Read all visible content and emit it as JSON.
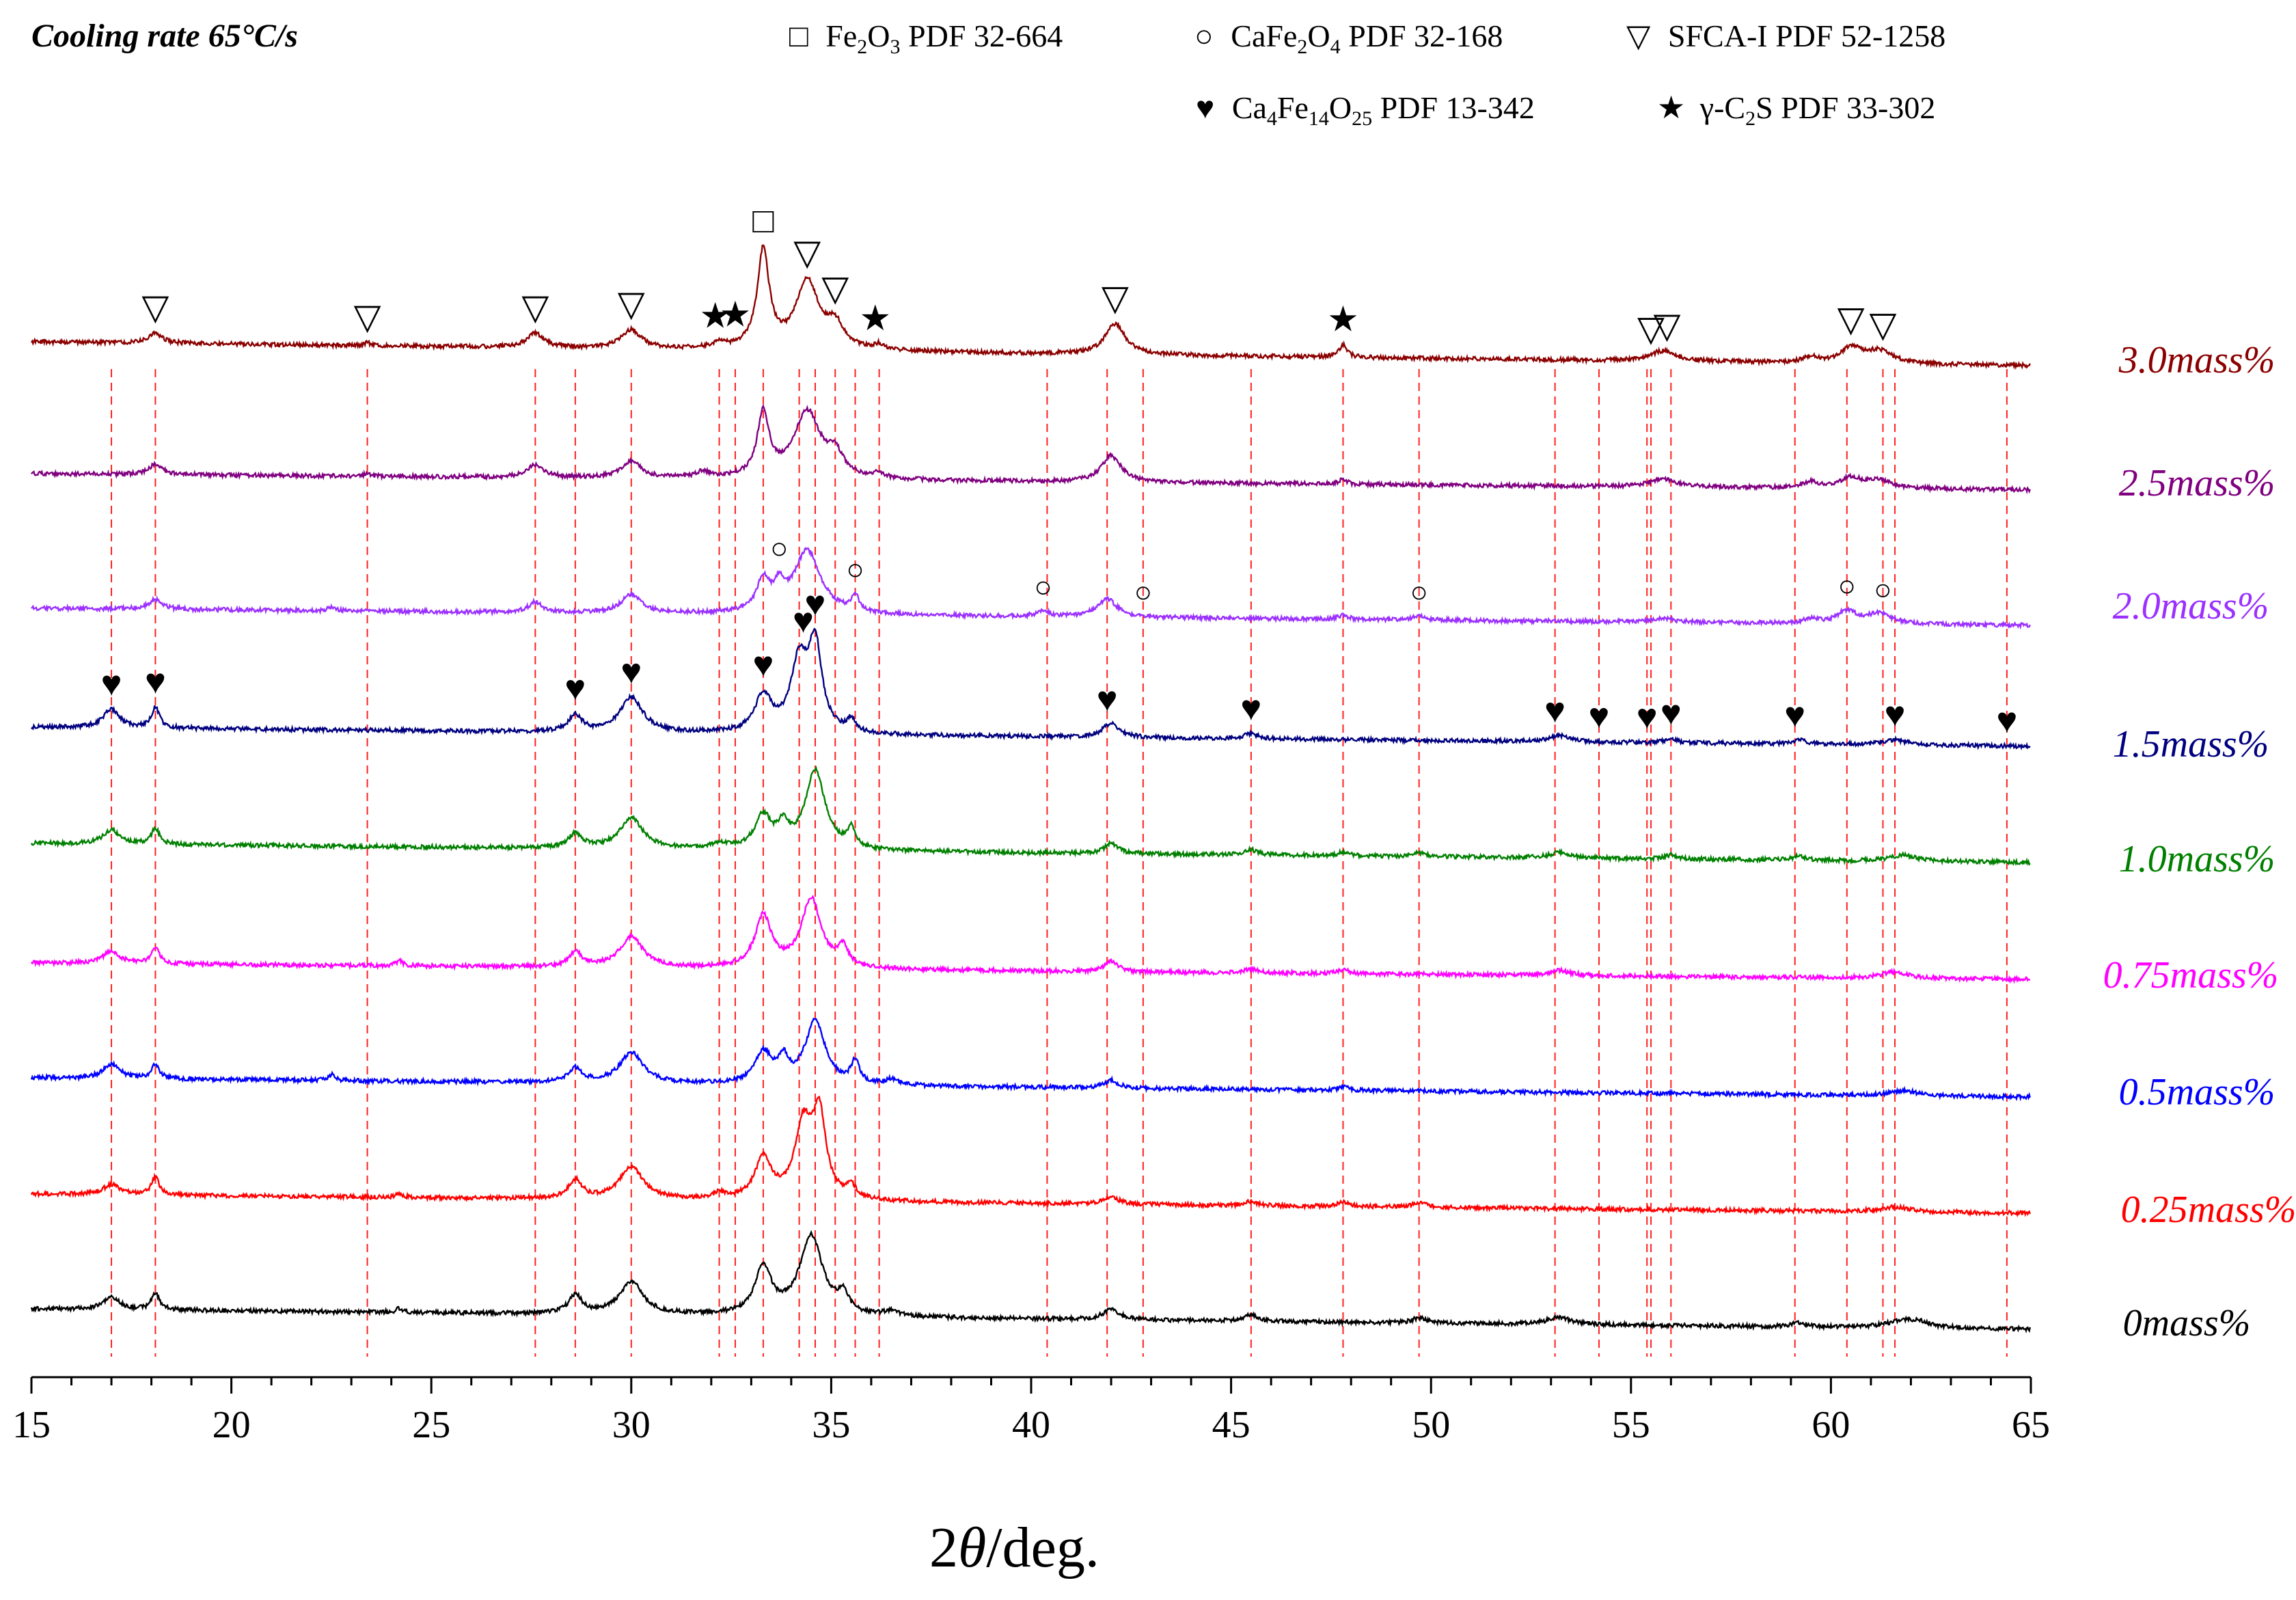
{
  "chart_data": {
    "type": "line",
    "title": "Cooling rate 65°C/s",
    "xlabel": "2θ/deg.",
    "xlabel_parts": {
      "num": "2",
      "theta": "θ",
      "unit": "/deg."
    },
    "ylabel": "",
    "xlim": [
      15,
      65
    ],
    "xticks": [
      15,
      20,
      25,
      30,
      35,
      40,
      45,
      50,
      55,
      60,
      65
    ],
    "xtick_labels": [
      "15",
      "20",
      "25",
      "30",
      "35",
      "40",
      "45",
      "50",
      "55",
      "60",
      "65"
    ],
    "grid": false,
    "legend": [
      {
        "symbol": "□",
        "symbol_name": "square-open-icon",
        "main": "Fe",
        "sub1": "2",
        "mid": "O",
        "sub2": "3",
        "mid2": "",
        "sub3": "",
        "rest": " PDF 32-664"
      },
      {
        "symbol": "○",
        "symbol_name": "circle-open-icon",
        "main": "CaFe",
        "sub1": "2",
        "mid": "O",
        "sub2": "4",
        "mid2": "",
        "sub3": "",
        "rest": " PDF 32-168"
      },
      {
        "symbol": "▽",
        "symbol_name": "triangle-down-open-icon",
        "main": "SFCA-I PDF 52-1258",
        "sub1": "",
        "mid": "",
        "sub2": "",
        "mid2": "",
        "sub3": "",
        "rest": ""
      },
      {
        "symbol": "♥",
        "symbol_name": "heart-filled-icon",
        "main": "Ca",
        "sub1": "4",
        "mid": "Fe",
        "sub2": "14",
        "mid2": "O",
        "sub3": "25",
        "rest": " PDF 13-342"
      },
      {
        "symbol": "★",
        "symbol_name": "star-filled-icon",
        "main": "γ-C",
        "sub1": "2",
        "mid": "S PDF 33-302",
        "sub2": "",
        "mid2": "",
        "sub3": "",
        "rest": ""
      }
    ],
    "series": [
      {
        "name": "0mass%",
        "color": "#000000",
        "baseline": 0.0,
        "end_drop": 0.0,
        "peaks": [
          [
            17.0,
            0.12,
            0.25
          ],
          [
            18.1,
            0.16,
            0.12
          ],
          [
            24.2,
            0.04,
            0.1
          ],
          [
            28.6,
            0.18,
            0.2
          ],
          [
            30.0,
            0.32,
            0.35
          ],
          [
            33.3,
            0.45,
            0.25
          ],
          [
            34.5,
            0.78,
            0.35
          ],
          [
            35.3,
            0.18,
            0.15
          ],
          [
            36.5,
            0.05,
            0.2
          ],
          [
            42.0,
            0.1,
            0.25
          ],
          [
            45.5,
            0.06,
            0.2
          ],
          [
            49.7,
            0.05,
            0.2
          ],
          [
            53.2,
            0.07,
            0.35
          ],
          [
            59.2,
            0.04,
            0.2
          ],
          [
            61.8,
            0.06,
            0.5
          ],
          [
            62.2,
            0.04,
            0.4
          ]
        ]
      },
      {
        "name": "0.25mass%",
        "color": "#ff0000",
        "baseline": 0.0,
        "end_drop": 0.0,
        "peaks": [
          [
            17.0,
            0.1,
            0.25
          ],
          [
            18.1,
            0.17,
            0.12
          ],
          [
            24.2,
            0.04,
            0.1
          ],
          [
            28.6,
            0.18,
            0.2
          ],
          [
            30.0,
            0.32,
            0.35
          ],
          [
            32.2,
            0.05,
            0.2
          ],
          [
            33.3,
            0.4,
            0.25
          ],
          [
            34.3,
            0.7,
            0.25
          ],
          [
            34.7,
            0.8,
            0.2
          ],
          [
            35.5,
            0.12,
            0.15
          ],
          [
            42.0,
            0.08,
            0.2
          ],
          [
            45.5,
            0.04,
            0.2
          ],
          [
            47.8,
            0.05,
            0.15
          ],
          [
            49.7,
            0.05,
            0.2
          ],
          [
            61.6,
            0.05,
            0.4
          ]
        ]
      },
      {
        "name": "0.5mass%",
        "color": "#0000ff",
        "baseline": 0.0,
        "end_drop": 0.0,
        "peaks": [
          [
            17.0,
            0.14,
            0.25
          ],
          [
            18.1,
            0.14,
            0.12
          ],
          [
            22.5,
            0.06,
            0.1
          ],
          [
            28.6,
            0.14,
            0.2
          ],
          [
            30.0,
            0.3,
            0.35
          ],
          [
            33.3,
            0.3,
            0.25
          ],
          [
            33.8,
            0.22,
            0.15
          ],
          [
            34.6,
            0.62,
            0.3
          ],
          [
            35.6,
            0.22,
            0.12
          ],
          [
            36.5,
            0.05,
            0.2
          ],
          [
            42.0,
            0.08,
            0.2
          ],
          [
            47.8,
            0.04,
            0.15
          ],
          [
            61.8,
            0.05,
            0.4
          ]
        ]
      },
      {
        "name": "0.75mass%",
        "color": "#ff00ff",
        "baseline": 0.0,
        "end_drop": 0.0,
        "peaks": [
          [
            17.0,
            0.12,
            0.25
          ],
          [
            18.1,
            0.16,
            0.12
          ],
          [
            24.2,
            0.05,
            0.1
          ],
          [
            28.6,
            0.14,
            0.2
          ],
          [
            30.0,
            0.3,
            0.35
          ],
          [
            33.3,
            0.5,
            0.25
          ],
          [
            34.5,
            0.68,
            0.3
          ],
          [
            35.3,
            0.18,
            0.15
          ],
          [
            42.0,
            0.1,
            0.2
          ],
          [
            45.5,
            0.04,
            0.2
          ],
          [
            47.8,
            0.04,
            0.15
          ],
          [
            53.2,
            0.05,
            0.3
          ],
          [
            61.6,
            0.06,
            0.4
          ]
        ]
      },
      {
        "name": "1.0mass%",
        "color": "#008000",
        "baseline": 0.0,
        "end_drop": 0.0,
        "peaks": [
          [
            17.0,
            0.14,
            0.25
          ],
          [
            18.1,
            0.16,
            0.12
          ],
          [
            28.6,
            0.14,
            0.2
          ],
          [
            30.0,
            0.3,
            0.35
          ],
          [
            32.2,
            0.05,
            0.2
          ],
          [
            33.3,
            0.32,
            0.25
          ],
          [
            33.8,
            0.2,
            0.15
          ],
          [
            34.6,
            0.78,
            0.3
          ],
          [
            35.5,
            0.18,
            0.12
          ],
          [
            42.0,
            0.1,
            0.2
          ],
          [
            45.5,
            0.05,
            0.2
          ],
          [
            47.8,
            0.04,
            0.15
          ],
          [
            49.7,
            0.04,
            0.2
          ],
          [
            53.2,
            0.05,
            0.3
          ],
          [
            56.0,
            0.04,
            0.2
          ],
          [
            59.2,
            0.04,
            0.2
          ],
          [
            61.8,
            0.06,
            0.4
          ]
        ]
      },
      {
        "name": "1.5mass%",
        "color": "#00007f",
        "baseline": 0.0,
        "end_drop": 0.0,
        "peaks": [
          [
            17.0,
            0.18,
            0.25
          ],
          [
            18.1,
            0.2,
            0.12
          ],
          [
            28.6,
            0.16,
            0.2
          ],
          [
            30.0,
            0.34,
            0.35
          ],
          [
            33.3,
            0.36,
            0.25
          ],
          [
            34.2,
            0.68,
            0.25
          ],
          [
            34.6,
            0.82,
            0.2
          ],
          [
            35.5,
            0.12,
            0.12
          ],
          [
            42.0,
            0.14,
            0.25
          ],
          [
            45.5,
            0.05,
            0.2
          ],
          [
            53.2,
            0.06,
            0.3
          ],
          [
            56.0,
            0.04,
            0.2
          ],
          [
            59.2,
            0.04,
            0.2
          ],
          [
            61.6,
            0.05,
            0.4
          ]
        ]
      },
      {
        "name": "2.0mass%",
        "color": "#9b30ff",
        "baseline": 0.0,
        "end_drop": 0.0,
        "peaks": [
          [
            18.1,
            0.1,
            0.2
          ],
          [
            22.5,
            0.04,
            0.1
          ],
          [
            27.6,
            0.1,
            0.2
          ],
          [
            30.0,
            0.18,
            0.3
          ],
          [
            33.3,
            0.3,
            0.2
          ],
          [
            33.7,
            0.2,
            0.15
          ],
          [
            34.4,
            0.62,
            0.4
          ],
          [
            35.6,
            0.15,
            0.12
          ],
          [
            40.3,
            0.05,
            0.2
          ],
          [
            41.9,
            0.18,
            0.3
          ],
          [
            47.8,
            0.04,
            0.15
          ],
          [
            49.7,
            0.04,
            0.2
          ],
          [
            55.8,
            0.04,
            0.3
          ],
          [
            59.5,
            0.04,
            0.2
          ],
          [
            60.4,
            0.12,
            0.3
          ],
          [
            61.2,
            0.1,
            0.35
          ]
        ]
      },
      {
        "name": "2.5mass%",
        "color": "#800080",
        "baseline": 0.0,
        "end_drop": 0.0,
        "peaks": [
          [
            18.1,
            0.1,
            0.2
          ],
          [
            23.4,
            0.03,
            0.1
          ],
          [
            27.6,
            0.12,
            0.25
          ],
          [
            30.0,
            0.16,
            0.3
          ],
          [
            31.8,
            0.06,
            0.2
          ],
          [
            33.3,
            0.62,
            0.18
          ],
          [
            34.4,
            0.65,
            0.4
          ],
          [
            35.1,
            0.2,
            0.25
          ],
          [
            36.2,
            0.05,
            0.15
          ],
          [
            42.0,
            0.26,
            0.3
          ],
          [
            47.8,
            0.05,
            0.12
          ],
          [
            55.8,
            0.08,
            0.4
          ],
          [
            59.5,
            0.06,
            0.2
          ],
          [
            60.5,
            0.1,
            0.3
          ],
          [
            61.2,
            0.08,
            0.4
          ]
        ]
      },
      {
        "name": "3.0mass%",
        "color": "#8b0000",
        "baseline": 0.0,
        "end_drop": 0.0,
        "peaks": [
          [
            18.1,
            0.1,
            0.2
          ],
          [
            23.4,
            0.03,
            0.1
          ],
          [
            27.6,
            0.14,
            0.25
          ],
          [
            30.0,
            0.18,
            0.3
          ],
          [
            32.2,
            0.05,
            0.2
          ],
          [
            33.3,
            0.95,
            0.18
          ],
          [
            34.4,
            0.66,
            0.35
          ],
          [
            35.1,
            0.22,
            0.25
          ],
          [
            36.2,
            0.05,
            0.15
          ],
          [
            42.1,
            0.3,
            0.3
          ],
          [
            47.8,
            0.12,
            0.12
          ],
          [
            55.8,
            0.1,
            0.4
          ],
          [
            59.5,
            0.06,
            0.2
          ],
          [
            60.5,
            0.15,
            0.3
          ],
          [
            61.2,
            0.12,
            0.4
          ]
        ]
      }
    ],
    "reference_lines": [
      17.0,
      18.1,
      23.4,
      27.6,
      28.6,
      30.0,
      32.2,
      32.6,
      33.3,
      34.2,
      34.6,
      35.1,
      35.6,
      36.2,
      40.4,
      41.9,
      42.8,
      45.5,
      47.8,
      49.7,
      53.1,
      54.2,
      55.4,
      55.5,
      56.0,
      59.1,
      60.4,
      61.3,
      61.6,
      64.4
    ],
    "markers": [
      {
        "series": "3.0mass%",
        "symbol": "▽",
        "x": [
          18.1,
          23.4,
          27.6,
          30.0,
          34.4,
          35.1,
          42.1,
          55.5,
          55.9,
          60.5,
          61.3
        ]
      },
      {
        "series": "3.0mass%",
        "symbol": "□",
        "x": [
          33.3
        ]
      },
      {
        "series": "3.0mass%",
        "symbol": "★",
        "x": [
          32.1,
          32.6,
          36.1,
          47.8
        ]
      },
      {
        "series": "2.0mass%",
        "symbol": "○",
        "x": [
          33.7,
          35.6,
          40.3,
          42.8,
          49.7,
          60.4,
          61.3
        ]
      },
      {
        "series": "1.5mass%",
        "symbol": "♥",
        "x": [
          17.0,
          18.1,
          28.6,
          30.0,
          33.3,
          34.3,
          34.6,
          41.9,
          45.5,
          53.1,
          54.2,
          55.4,
          56.0,
          59.1,
          61.6,
          64.4
        ]
      }
    ]
  }
}
